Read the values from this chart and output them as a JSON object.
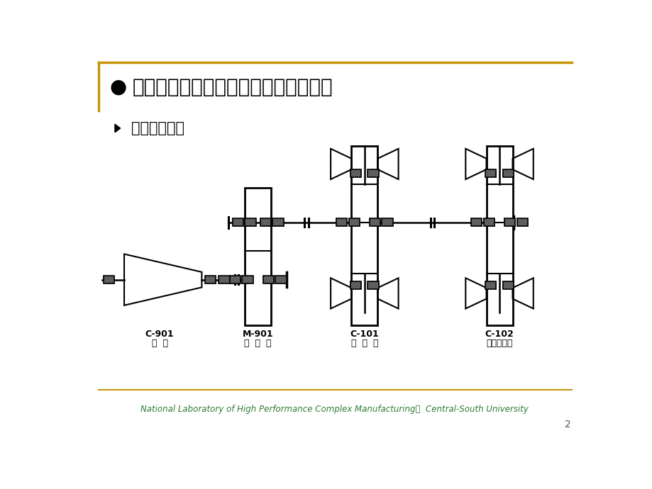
{
  "title": "汽轮压缩机组工况监视与故障诊断系统",
  "subtitle": "机械设备简介",
  "footer": "National Laboratory of High Performance Complex Manufacturing，  Central-South University",
  "page_num": "2",
  "bg_color": "#ffffff",
  "title_color": "#000000",
  "subtitle_color": "#000000",
  "footer_color": "#2e7d32",
  "header_line_color": "#c8960c",
  "footer_line_color": "#c8960c",
  "diagram_color": "#000000",
  "labels": {
    "c901_code": "C-901",
    "c901_name": "透  平",
    "m901_code": "M-901",
    "m901_name": "减  速  箱",
    "c101_code": "C-101",
    "c101_name": "压  缩  机",
    "c102_code": "C-102",
    "c102_name": "尾气膨胀机"
  }
}
